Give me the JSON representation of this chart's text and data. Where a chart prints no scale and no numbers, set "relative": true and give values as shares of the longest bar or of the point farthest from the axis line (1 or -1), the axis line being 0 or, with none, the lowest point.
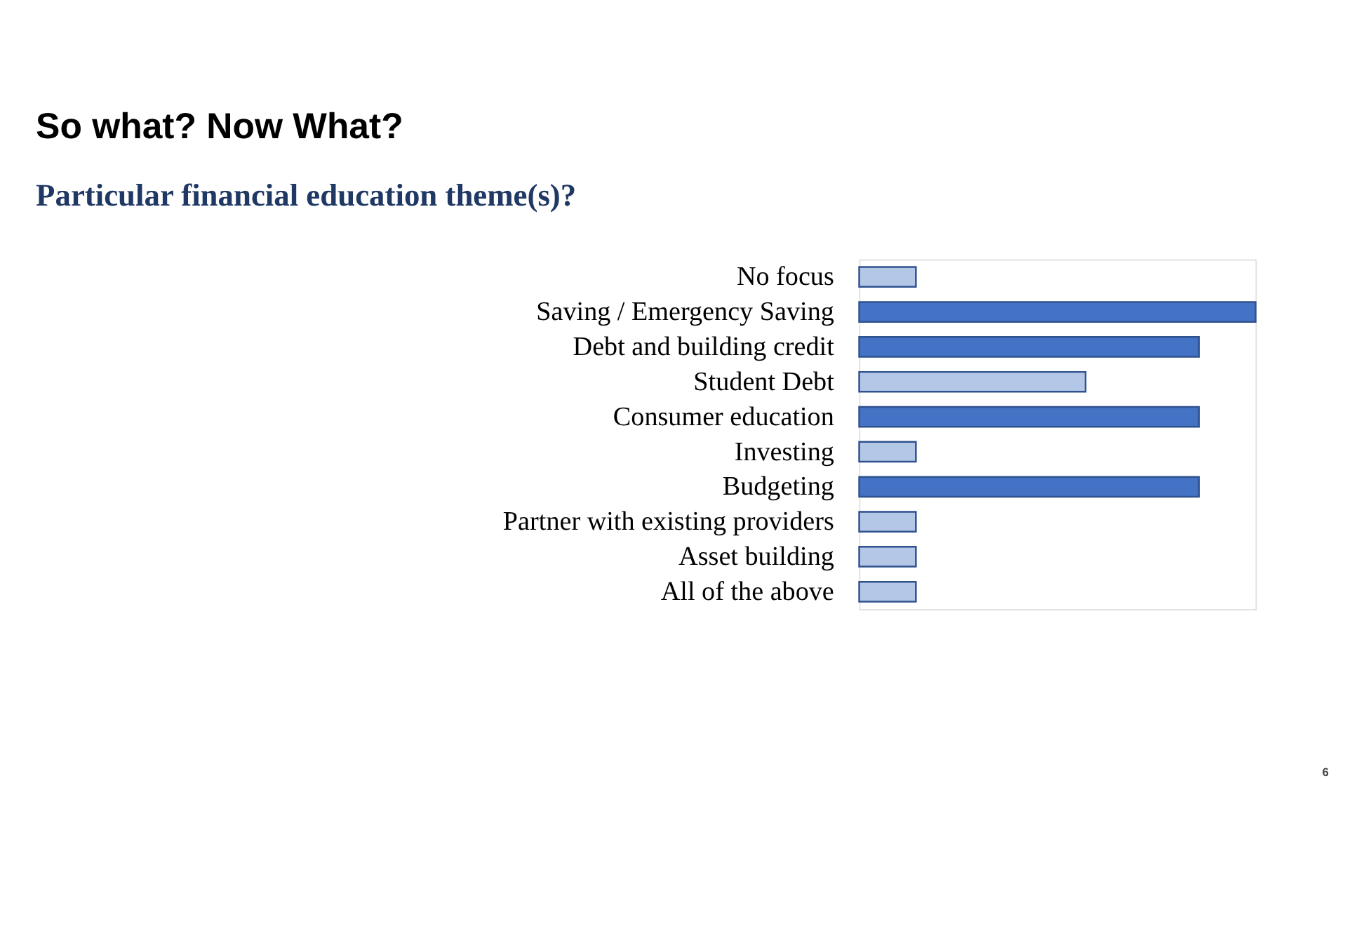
{
  "chart_data": {
    "type": "bar",
    "orientation": "horizontal",
    "relative": true,
    "title": "So what? Now What?",
    "subtitle": "Particular financial education theme(s)?",
    "categories": [
      "No focus",
      "Saving / Emergency Saving",
      "Debt and building credit",
      "Student Debt",
      "Consumer education",
      "Investing",
      "Budgeting",
      "Partner with existing providers",
      "Asset building",
      "All of the above"
    ],
    "values": [
      0.143,
      1,
      0.857,
      0.571,
      0.857,
      0.143,
      0.857,
      0.143,
      0.143,
      0.143
    ],
    "colors": [
      "#b4c7e7",
      "#4472c4",
      "#4472c4",
      "#b4c7e7",
      "#4472c4",
      "#b4c7e7",
      "#4472c4",
      "#b4c7e7",
      "#b4c7e7",
      "#b4c7e7"
    ],
    "annotations": [
      "6"
    ]
  }
}
